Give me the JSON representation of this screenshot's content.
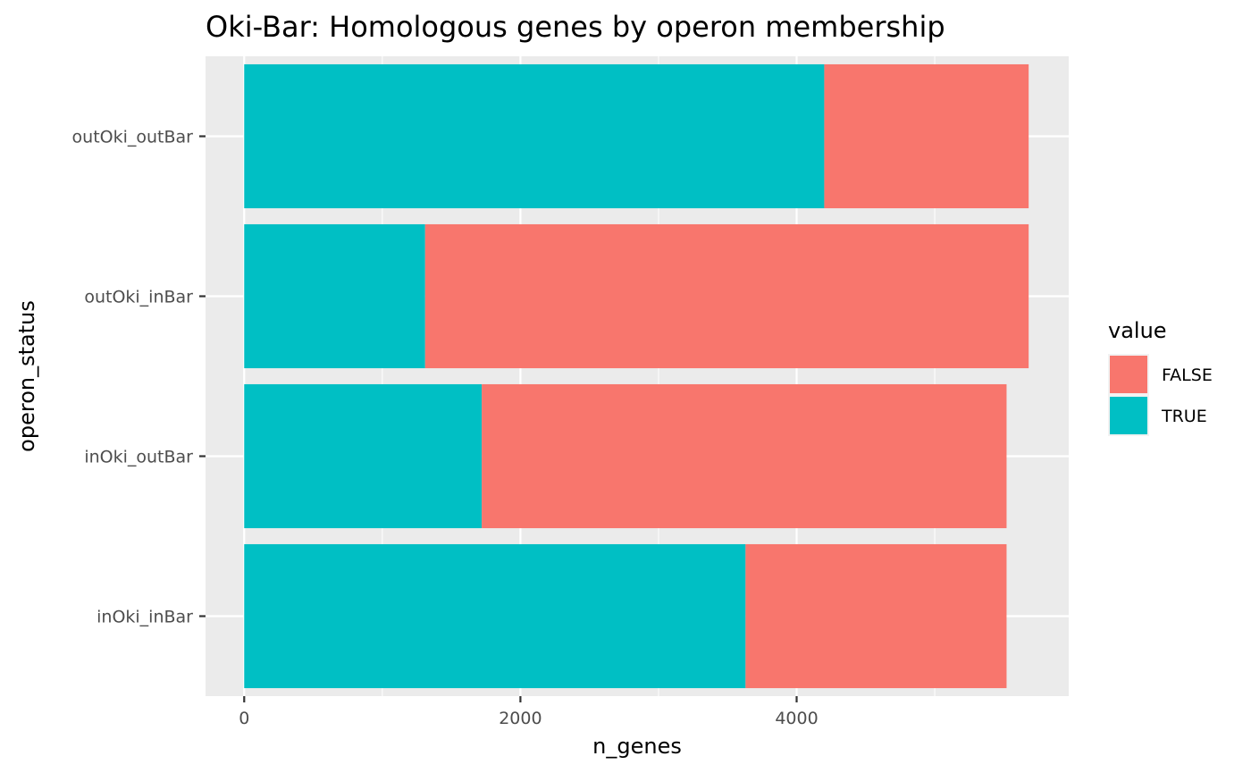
{
  "chart_data": {
    "type": "bar",
    "orientation": "horizontal",
    "stacked": true,
    "title": "Oki-Bar: Homologous genes by operon membership",
    "xlabel": "n_genes",
    "ylabel": "operon_status",
    "categories": [
      "inOki_inBar",
      "inOki_outBar",
      "outOki_inBar",
      "outOki_outBar"
    ],
    "series": [
      {
        "name": "TRUE",
        "color": "#00BFC4",
        "values": [
          3630,
          1720,
          1310,
          4200
        ]
      },
      {
        "name": "FALSE",
        "color": "#F8766D",
        "values": [
          1890,
          3800,
          4370,
          1480
        ]
      }
    ],
    "xlim": [
      -280,
      5970
    ],
    "xticks": [
      0,
      2000,
      4000
    ],
    "xtick_labels": [
      "0",
      "2000",
      "4000"
    ],
    "grid": true,
    "legend": {
      "title": "value",
      "position": "right",
      "entries": [
        "FALSE",
        "TRUE"
      ]
    }
  }
}
